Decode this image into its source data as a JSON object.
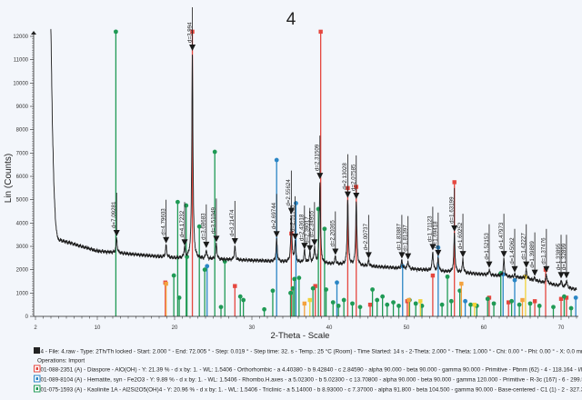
{
  "chart_data": {
    "type": "line",
    "title": "4",
    "xlabel": "2-Theta - Scale",
    "ylabel": "Lin (Counts)",
    "xlim": [
      2,
      72
    ],
    "ylim": [
      0,
      12000
    ],
    "x_ticks": [
      "2",
      "10",
      "20",
      "30",
      "40",
      "50",
      "60",
      "70"
    ],
    "y_ticks": [
      "0",
      "1000",
      "2000",
      "3000",
      "4000",
      "5000",
      "6000",
      "7000",
      "8000",
      "9000",
      "10000",
      "11000",
      "12000"
    ],
    "grid": false,
    "pattern_color": "#1e1e1e",
    "background": [
      [
        4.0,
        12300
      ],
      [
        4.2,
        8000
      ],
      [
        4.4,
        5500
      ],
      [
        4.6,
        4000
      ],
      [
        4.9,
        3300
      ],
      [
        10,
        2800
      ],
      [
        20,
        2500
      ],
      [
        30,
        2400
      ],
      [
        40,
        2250
      ],
      [
        50,
        2050
      ],
      [
        60,
        1800
      ],
      [
        65,
        1650
      ],
      [
        72,
        1150
      ]
    ],
    "peaks": [
      {
        "two_theta": 12.5,
        "counts": 3350,
        "label": "d=7.09281"
      },
      {
        "two_theta": 18.9,
        "counts": 3050,
        "label": "d=4.79603"
      },
      {
        "two_theta": 21.3,
        "counts": 2950,
        "label": "d=4.17232"
      },
      {
        "two_theta": 22.3,
        "counts": 11300,
        "label": "d=3.994"
      },
      {
        "two_theta": 24.1,
        "counts": 2850,
        "label": "d=3.68683"
      },
      {
        "two_theta": 25.4,
        "counts": 3100,
        "label": "d=3.51049"
      },
      {
        "two_theta": 27.8,
        "counts": 3000,
        "label": "d=3.21474"
      },
      {
        "two_theta": 33.2,
        "counts": 3300,
        "label": "d=2.69744"
      },
      {
        "two_theta": 35.1,
        "counts": 4300,
        "label": "d=2.55624"
      },
      {
        "two_theta": 35.6,
        "counts": 3200,
        "label": "d=2.51505"
      },
      {
        "two_theta": 36.8,
        "counts": 2800,
        "label": "d=2.43618"
      },
      {
        "two_theta": 37.5,
        "counts": 2700,
        "label": "d=2.39017"
      },
      {
        "two_theta": 38.1,
        "counts": 2950,
        "label": "d=2.34955"
      },
      {
        "two_theta": 38.8,
        "counts": 5800,
        "label": "d=2.31509"
      },
      {
        "two_theta": 40.8,
        "counts": 2550,
        "label": "d=2.20365"
      },
      {
        "two_theta": 42.4,
        "counts": 5000,
        "label": "d=2.13028"
      },
      {
        "two_theta": 43.5,
        "counts": 4950,
        "label": "d=2.07585"
      },
      {
        "two_theta": 45.1,
        "counts": 2400,
        "label": "d=2.00737"
      },
      {
        "two_theta": 49.4,
        "counts": 2400,
        "label": "d=1.83887"
      },
      {
        "two_theta": 50.2,
        "counts": 2350,
        "label": "d=1.81397"
      },
      {
        "two_theta": 53.4,
        "counts": 2750,
        "label": "d=1.71123"
      },
      {
        "two_theta": 54.1,
        "counts": 2500,
        "label": "d=1.69418"
      },
      {
        "two_theta": 56.2,
        "counts": 3550,
        "label": "d=1.63199"
      },
      {
        "two_theta": 57.3,
        "counts": 2450,
        "label": "d=1.60252"
      },
      {
        "two_theta": 60.7,
        "counts": 2000,
        "label": "d=1.52153"
      },
      {
        "two_theta": 62.6,
        "counts": 2450,
        "label": "d=1.47973"
      },
      {
        "two_theta": 64.0,
        "counts": 1800,
        "label": "d=1.45062"
      },
      {
        "two_theta": 65.5,
        "counts": 2000,
        "label": "d=1.42227"
      },
      {
        "two_theta": 66.6,
        "counts": 1650,
        "label": "d=1.39889"
      },
      {
        "two_theta": 68.1,
        "counts": 1800,
        "label": "d=1.37476"
      },
      {
        "two_theta": 70.0,
        "counts": 1550,
        "label": "d=1.33895"
      },
      {
        "two_theta": 70.7,
        "counts": 1550,
        "label": "d=1.32899"
      }
    ],
    "reference_series": [
      {
        "name": "Diaspore",
        "color": "#e5473f",
        "marker": "square",
        "sticks": [
          [
            18.8,
            1450
          ],
          [
            22.3,
            12200
          ],
          [
            27.8,
            1300
          ],
          [
            35.1,
            3550
          ],
          [
            38.2,
            1300
          ],
          [
            38.9,
            12200
          ],
          [
            42.4,
            5500
          ],
          [
            43.5,
            5550
          ],
          [
            50.1,
            650
          ],
          [
            53.4,
            1750
          ],
          [
            56.2,
            5750
          ],
          [
            60.7,
            800
          ],
          [
            66.6,
            650
          ],
          [
            68.0,
            2000
          ],
          [
            70.0,
            750
          ],
          [
            70.7,
            800
          ],
          [
            45.3,
            500
          ],
          [
            63.2,
            600
          ]
        ]
      },
      {
        "name": "Hematite",
        "color": "#2b86c5",
        "marker": "circle",
        "sticks": [
          [
            24.2,
            2150
          ],
          [
            33.2,
            6700
          ],
          [
            35.7,
            4850
          ],
          [
            41.0,
            1450
          ],
          [
            49.5,
            2150
          ],
          [
            54.1,
            2950
          ],
          [
            57.6,
            650
          ],
          [
            62.5,
            1800
          ],
          [
            64.0,
            1550
          ],
          [
            71.9,
            800
          ]
        ]
      },
      {
        "name": "Kaolinite",
        "color": "#1f9a55",
        "marker": "circle",
        "sticks": [
          [
            12.4,
            12200
          ],
          [
            19.9,
            1750
          ],
          [
            20.4,
            4900
          ],
          [
            20.6,
            800
          ],
          [
            21.5,
            4750
          ],
          [
            21.6,
            2550
          ],
          [
            23.2,
            3850
          ],
          [
            23.9,
            2000
          ],
          [
            25.2,
            7050
          ],
          [
            26.0,
            400
          ],
          [
            26.5,
            2350
          ],
          [
            28.5,
            850
          ],
          [
            28.9,
            700
          ],
          [
            31.6,
            300
          ],
          [
            32.7,
            1100
          ],
          [
            35.0,
            1000
          ],
          [
            35.3,
            1200
          ],
          [
            35.5,
            1600
          ],
          [
            36.1,
            1650
          ],
          [
            37.9,
            1200
          ],
          [
            38.6,
            4600
          ],
          [
            39.4,
            3750
          ],
          [
            39.6,
            1150
          ],
          [
            40.5,
            600
          ],
          [
            41.2,
            450
          ],
          [
            41.9,
            700
          ],
          [
            43.0,
            550
          ],
          [
            44.0,
            400
          ],
          [
            45.6,
            1150
          ],
          [
            46.2,
            700
          ],
          [
            46.9,
            850
          ],
          [
            47.5,
            500
          ],
          [
            48.3,
            600
          ],
          [
            49.0,
            450
          ],
          [
            50.4,
            700
          ],
          [
            51.2,
            550
          ],
          [
            52.0,
            450
          ],
          [
            54.6,
            500
          ],
          [
            55.3,
            1700
          ],
          [
            55.8,
            650
          ],
          [
            56.9,
            1100
          ],
          [
            58.3,
            500
          ],
          [
            59.1,
            450
          ],
          [
            60.5,
            750
          ],
          [
            61.3,
            550
          ],
          [
            62.2,
            1850
          ],
          [
            63.6,
            650
          ],
          [
            64.6,
            500
          ],
          [
            66.0,
            550
          ],
          [
            67.2,
            450
          ],
          [
            69.0,
            400
          ],
          [
            70.4,
            850
          ],
          [
            71.3,
            350
          ]
        ]
      },
      {
        "name": "",
        "color": "#f1d23a",
        "marker": "square",
        "sticks": [
          [
            37.5,
            700
          ],
          [
            51.8,
            650
          ],
          [
            65.4,
            1700
          ],
          [
            58.8,
            500
          ]
        ]
      },
      {
        "name": "",
        "color": "#f3a23e",
        "marker": "square",
        "sticks": [
          [
            18.9,
            1400
          ],
          [
            36.8,
            550
          ],
          [
            50.3,
            700
          ],
          [
            57.1,
            1400
          ],
          [
            65.0,
            700
          ]
        ]
      }
    ],
    "legend": {
      "placement": "bottom",
      "scan_line": "4 - File: 4.raw - Type: 2Th/Th locked - Start: 2.000 ° - End: 72.005 ° - Step: 0.019 ° - Step time: 32. s - Temp.: 25 °C (Room) - Time Started: 14 s - 2-Theta: 2.000 ° - Theta: 1.000 ° - Chi: 0.00 ° - Phi: 0.00 ° - X: 0.0 mm - Y:",
      "operations_line": "Operations: Import",
      "entries": [
        {
          "text": "01-088-2351 (A) - Diaspore - AlO(OH) - Y: 21.39 % - d x by: 1. - WL: 1.5406 - Orthorhombic - a 4.40380 - b 9.42840 - c 2.84590 - alpha 90.000 - beta 90.000 - gamma 90.000 - Primitive - Pbnm (62) - 4 - 118.164 - I/Ic PD",
          "color": "#e5473f"
        },
        {
          "text": "01-089-8104 (A) - Hematite, syn - Fe2O3 - Y: 9.89 % - d x by: 1. - WL: 1.5406 - Rhombo.H.axes - a 5.02300 - b 5.02300 - c 13.70800 - alpha 90.000 - beta 90.000 - gamma 120.000 - Primitive - R-3c (167) - 6 - 299.524 - I",
          "color": "#2b86c5"
        },
        {
          "text": "01-075-1593 (A) - Kaolinite 1A - Al2Si2O5(OH)4 - Y: 20.96 % - d x by: 1. - WL: 1.5406 - Triclinic - a 5.14000 - b 8.93000 - c 7.37000 - alpha 91.800 - beta 104.500 - gamma 90.000 - Base-centered - C1 (1) - 2 - 327.337 - I",
          "color": "#1f9a55"
        }
      ]
    }
  }
}
